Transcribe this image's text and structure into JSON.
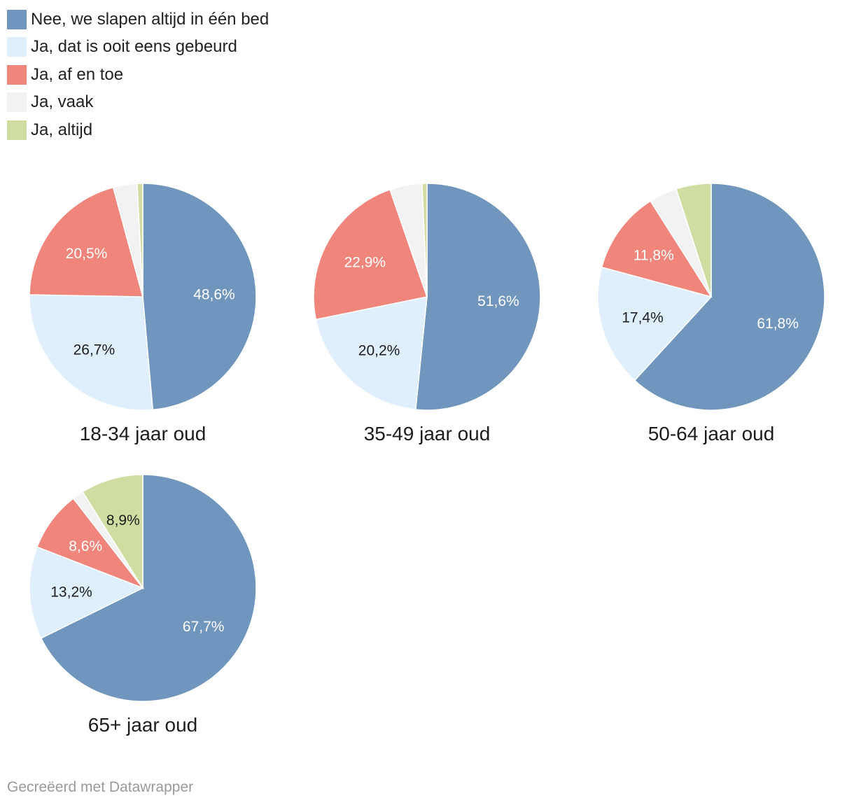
{
  "colors": {
    "nee": "#7096bd",
    "ooit": "#e0effd",
    "af_en_toe": "#f0857b",
    "vaak": "#f1f2f1",
    "altijd": "#cfdda2"
  },
  "legend": [
    {
      "label": "Nee, we slapen altijd in één bed",
      "color": "#7096bd"
    },
    {
      "label": "Ja, dat is ooit eens gebeurd",
      "color": "#e0effd"
    },
    {
      "label": "Ja, af en toe",
      "color": "#f0857b"
    },
    {
      "label": "Ja, vaak",
      "color": "#f1f2f1"
    },
    {
      "label": "Ja, altijd",
      "color": "#cfdda2"
    }
  ],
  "chart_data": [
    {
      "type": "pie",
      "title": "18-34 jaar oud",
      "categories": [
        "Nee, we slapen altijd in één bed",
        "Ja, dat is ooit eens gebeurd",
        "Ja, af en toe",
        "Ja, vaak",
        "Ja, altijd"
      ],
      "values": [
        48.6,
        26.7,
        20.5,
        3.4,
        0.8
      ],
      "labels": [
        "48,6%",
        "26,7%",
        "20,5%",
        "",
        ""
      ]
    },
    {
      "type": "pie",
      "title": "35-49 jaar oud",
      "categories": [
        "Nee, we slapen altijd in één bed",
        "Ja, dat is ooit eens gebeurd",
        "Ja, af en toe",
        "Ja, vaak",
        "Ja, altijd"
      ],
      "values": [
        51.6,
        20.2,
        22.9,
        4.6,
        0.7
      ],
      "labels": [
        "51,6%",
        "20,2%",
        "22,9%",
        "",
        ""
      ]
    },
    {
      "type": "pie",
      "title": "50-64 jaar oud",
      "categories": [
        "Nee, we slapen altijd in één bed",
        "Ja, dat is ooit eens gebeurd",
        "Ja, af en toe",
        "Ja, vaak",
        "Ja, altijd"
      ],
      "values": [
        61.8,
        17.4,
        11.8,
        4.0,
        5.0
      ],
      "labels": [
        "61,8%",
        "17,4%",
        "11,8%",
        "",
        ""
      ]
    },
    {
      "type": "pie",
      "title": "65+ jaar oud",
      "categories": [
        "Nee, we slapen altijd in één bed",
        "Ja, dat is ooit eens gebeurd",
        "Ja, af en toe",
        "Ja, vaak",
        "Ja, altijd"
      ],
      "values": [
        67.7,
        13.2,
        8.6,
        1.6,
        8.9
      ],
      "labels": [
        "67,7%",
        "13,2%",
        "8,6%",
        "",
        "8,9%"
      ]
    }
  ],
  "credit": "Gecreëerd met Datawrapper"
}
